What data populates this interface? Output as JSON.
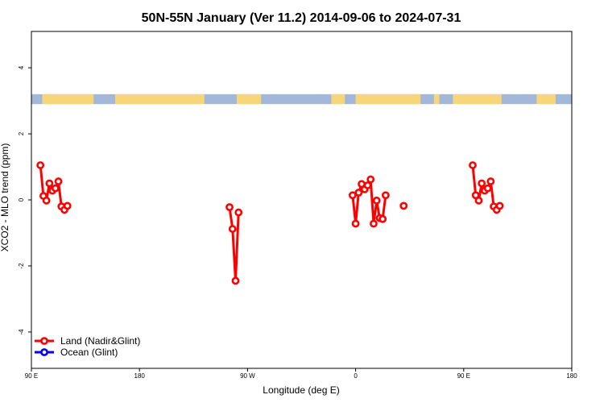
{
  "chart_data": {
    "type": "line",
    "title": "50N-55N January (Ver 11.2)   2014-09-06 to 2024-07-31",
    "xlabel": "Longitude (deg E)",
    "ylabel": "XCO2 - MLO trend (ppm)",
    "xlim": [
      90,
      450
    ],
    "ylim": [
      -5.1,
      5.1
    ],
    "x_ticks": [
      {
        "value": 90,
        "label": "90 E"
      },
      {
        "value": 180,
        "label": "180"
      },
      {
        "value": 270,
        "label": "90 W"
      },
      {
        "value": 360,
        "label": "0"
      },
      {
        "value": 450,
        "label": "90 E"
      },
      {
        "value": 540,
        "label": "180"
      }
    ],
    "y_ticks": [
      {
        "value": -4,
        "label": "-4"
      },
      {
        "value": -2,
        "label": "-2"
      },
      {
        "value": 0,
        "label": "0"
      },
      {
        "value": 2,
        "label": "2"
      },
      {
        "value": 4,
        "label": "4"
      }
    ],
    "legend_position": "bottom-left",
    "land_strip": {
      "y_range": [
        2.9,
        3.2
      ],
      "ocean_color": "#a3b8d9",
      "land_color": "#f7d57a"
    },
    "series": [
      {
        "name": "Land (Nadir&Glint)",
        "color": "#ff0000",
        "segments": [
          [
            [
              97.5,
              1.05
            ],
            [
              100,
              0.12
            ],
            [
              102.5,
              -0.02
            ],
            [
              105,
              0.5
            ],
            [
              107.5,
              0.28
            ],
            [
              110,
              0.35
            ],
            [
              112.5,
              0.56
            ],
            [
              115,
              -0.2
            ],
            [
              117.5,
              -0.3
            ],
            [
              120,
              -0.18
            ]
          ],
          [
            [
              255,
              -0.22
            ],
            [
              257.5,
              -0.88
            ],
            [
              260,
              -2.45
            ],
            [
              262.5,
              -0.38
            ]
          ],
          [
            [
              357.5,
              0.14
            ],
            [
              360,
              -0.72
            ],
            [
              362.5,
              0.22
            ],
            [
              365,
              0.48
            ],
            [
              367.5,
              0.32
            ],
            [
              370,
              0.44
            ],
            [
              372.5,
              0.62
            ],
            [
              375,
              -0.72
            ],
            [
              377.5,
              -0.02
            ],
            [
              380,
              -0.55
            ],
            [
              382.5,
              -0.58
            ],
            [
              385,
              0.14
            ]
          ],
          [
            [
              400,
              -0.18
            ]
          ],
          [
            [
              457.5,
              1.05
            ],
            [
              460,
              0.14
            ],
            [
              462.5,
              -0.02
            ],
            [
              465,
              0.5
            ],
            [
              467.5,
              0.28
            ],
            [
              470,
              0.35
            ],
            [
              472.5,
              0.56
            ],
            [
              475,
              -0.2
            ],
            [
              477.5,
              -0.3
            ],
            [
              480,
              -0.18
            ]
          ]
        ]
      },
      {
        "name": "Ocean (Glint)",
        "color": "#0000ff",
        "segments": []
      }
    ]
  }
}
